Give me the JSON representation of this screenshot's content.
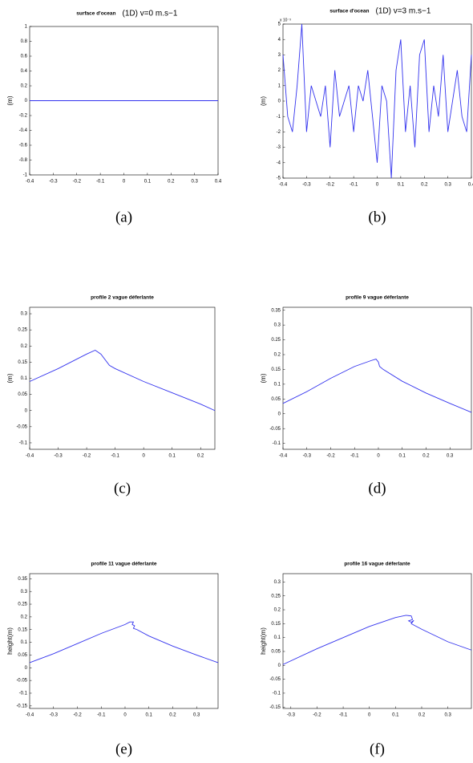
{
  "chart_data": [
    {
      "type": "line",
      "title": "surface d'ocean",
      "subtitle": "(1D) v=0 m.s−1",
      "ylabel": "(m)",
      "caption": "(a)",
      "x": [
        -0.4,
        0.4
      ],
      "values": [
        0,
        0
      ],
      "color": "#3333ee",
      "xlim": [
        -0.4,
        0.4
      ],
      "xticks": [
        -0.4,
        -0.3,
        -0.2,
        -0.1,
        0,
        0.1,
        0.2,
        0.3,
        0.4
      ],
      "ylim": [
        -1,
        1
      ],
      "yticks": [
        -1,
        -0.8,
        -0.6,
        -0.4,
        -0.2,
        0,
        0.2,
        0.4,
        0.6,
        0.8,
        1
      ]
    },
    {
      "type": "line",
      "title": "surface d'ocean",
      "subtitle": "(1D) v=3 m.s−1",
      "ylabel": "(m)",
      "caption": "(b)",
      "y_multiplier": "x 10⁻³",
      "x": [
        -0.4,
        -0.38,
        -0.36,
        -0.34,
        -0.32,
        -0.3,
        -0.28,
        -0.26,
        -0.24,
        -0.22,
        -0.2,
        -0.18,
        -0.16,
        -0.14,
        -0.12,
        -0.1,
        -0.08,
        -0.06,
        -0.04,
        -0.02,
        0,
        0.02,
        0.04,
        0.06,
        0.08,
        0.1,
        0.12,
        0.14,
        0.16,
        0.18,
        0.2,
        0.22,
        0.24,
        0.26,
        0.28,
        0.3,
        0.32,
        0.34,
        0.36,
        0.38,
        0.4
      ],
      "values": [
        3,
        -1,
        -2,
        1,
        5,
        -2,
        1,
        0,
        -1,
        1,
        -3,
        2,
        -1,
        0,
        1,
        -2,
        1,
        0,
        2,
        -1,
        -4,
        1,
        0,
        -5,
        2,
        4,
        -2,
        1,
        -3,
        3,
        4,
        -2,
        1,
        -1,
        3,
        -2,
        0,
        2,
        -1,
        -2,
        3
      ],
      "color": "#3333ee",
      "xlim": [
        -0.4,
        0.4
      ],
      "xticks": [
        -0.4,
        -0.3,
        -0.2,
        -0.1,
        0,
        0.1,
        0.2,
        0.3,
        0.4
      ],
      "ylim": [
        -5,
        5
      ],
      "yticks": [
        -5,
        -4,
        -3,
        -2,
        -1,
        0,
        1,
        2,
        3,
        4,
        5
      ]
    },
    {
      "type": "line",
      "title": "profile 2 vague  déferlante",
      "ylabel": "(m)",
      "caption": "(c)",
      "x": [
        -0.4,
        -0.3,
        -0.2,
        -0.17,
        -0.15,
        -0.12,
        -0.1,
        0,
        0.1,
        0.2,
        0.25
      ],
      "values": [
        0.09,
        0.13,
        0.175,
        0.187,
        0.175,
        0.14,
        0.13,
        0.09,
        0.055,
        0.02,
        0
      ],
      "color": "#3333ee",
      "xlim": [
        -0.4,
        0.25
      ],
      "xticks": [
        -0.4,
        -0.3,
        -0.2,
        -0.1,
        0,
        0.1,
        0.2
      ],
      "ylim": [
        -0.12,
        0.32
      ],
      "yticks": [
        -0.1,
        -0.05,
        0,
        0.05,
        0.1,
        0.15,
        0.2,
        0.25,
        0.3
      ]
    },
    {
      "type": "line",
      "title": "profile 9 vague  déferlante",
      "ylabel": "(m)",
      "caption": "(d)",
      "x": [
        -0.4,
        -0.3,
        -0.2,
        -0.1,
        -0.03,
        -0.01,
        0,
        0.005,
        0.02,
        0.1,
        0.2,
        0.3,
        0.39
      ],
      "values": [
        0.035,
        0.075,
        0.12,
        0.16,
        0.18,
        0.185,
        0.175,
        0.16,
        0.15,
        0.11,
        0.07,
        0.035,
        0.005
      ],
      "color": "#3333ee",
      "xlim": [
        -0.4,
        0.39
      ],
      "xticks": [
        -0.4,
        -0.3,
        -0.2,
        -0.1,
        0,
        0.1,
        0.2,
        0.3
      ],
      "ylim": [
        -0.12,
        0.36
      ],
      "yticks": [
        -0.1,
        -0.05,
        0,
        0.05,
        0.1,
        0.15,
        0.2,
        0.25,
        0.3,
        0.35
      ]
    },
    {
      "type": "line",
      "title": "profile 11 vague déferlante",
      "ylabel": "height(m)",
      "caption": "(e)",
      "x": [
        -0.4,
        -0.3,
        -0.2,
        -0.1,
        0,
        0.02,
        0.035,
        0.03,
        0.04,
        0.035,
        0.05,
        0.1,
        0.2,
        0.3,
        0.39
      ],
      "values": [
        0.02,
        0.055,
        0.095,
        0.135,
        0.17,
        0.18,
        0.18,
        0.17,
        0.165,
        0.155,
        0.15,
        0.125,
        0.085,
        0.05,
        0.02
      ],
      "color": "#3333ee",
      "xlim": [
        -0.4,
        0.39
      ],
      "xticks": [
        -0.4,
        -0.3,
        -0.2,
        -0.1,
        0,
        0.1,
        0.2,
        0.3
      ],
      "ylim": [
        -0.16,
        0.37
      ],
      "yticks": [
        -0.15,
        -0.1,
        -0.05,
        0,
        0.05,
        0.1,
        0.15,
        0.2,
        0.25,
        0.3,
        0.35
      ]
    },
    {
      "type": "line",
      "title": "profile 16 vague déferlante",
      "ylabel": "height(m)",
      "caption": "(f)",
      "x": [
        -0.33,
        -0.2,
        -0.1,
        0,
        0.1,
        0.14,
        0.16,
        0.165,
        0.15,
        0.16,
        0.17,
        0.16,
        0.2,
        0.3,
        0.39
      ],
      "values": [
        0.003,
        0.06,
        0.1,
        0.14,
        0.172,
        0.18,
        0.178,
        0.165,
        0.16,
        0.155,
        0.162,
        0.15,
        0.13,
        0.085,
        0.055
      ],
      "color": "#3333ee",
      "xlim": [
        -0.33,
        0.39
      ],
      "xticks": [
        -0.3,
        -0.2,
        -0.1,
        0,
        0.1,
        0.2,
        0.3
      ],
      "ylim": [
        -0.155,
        0.33
      ],
      "yticks": [
        -0.15,
        -0.1,
        -0.05,
        0,
        0.05,
        0.1,
        0.15,
        0.2,
        0.25,
        0.3
      ]
    }
  ]
}
